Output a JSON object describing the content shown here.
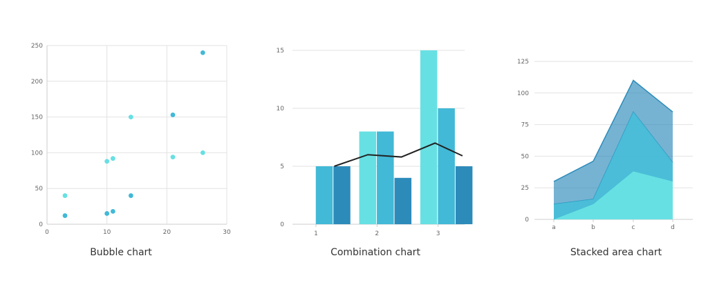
{
  "colors": {
    "light": "#67e0e3",
    "mid": "#42b9d6",
    "dark": "#2d8bba",
    "line": "#222222",
    "grid": "#e2e2e2"
  },
  "chart_data": [
    {
      "type": "scatter",
      "caption": "Bubble chart",
      "xlim": [
        0,
        30
      ],
      "ylim": [
        0,
        250
      ],
      "xticks": [
        "0",
        "10",
        "20",
        "30"
      ],
      "yticks": [
        "0",
        "50",
        "100",
        "150",
        "200",
        "250"
      ],
      "series": [
        {
          "color": "#67e0e3",
          "points": [
            [
              3,
              40
            ],
            [
              10,
              88
            ],
            [
              11,
              92
            ],
            [
              14,
              150
            ],
            [
              21,
              94
            ],
            [
              26,
              100
            ]
          ]
        },
        {
          "color": "#42b9d6",
          "points": [
            [
              3,
              12
            ],
            [
              10,
              15
            ],
            [
              11,
              18
            ],
            [
              14,
              40
            ],
            [
              21,
              153
            ],
            [
              26,
              240
            ]
          ]
        }
      ]
    },
    {
      "type": "bar",
      "caption": "Combination chart",
      "categories": [
        "1",
        "2",
        "3"
      ],
      "ylim": [
        0,
        15
      ],
      "yticks": [
        "0",
        "5",
        "10",
        "15"
      ],
      "series": [
        {
          "color": "#67e0e3",
          "values": [
            0,
            8,
            15
          ]
        },
        {
          "color": "#42b9d6",
          "values": [
            5,
            8,
            10
          ]
        },
        {
          "color": "#2d8bba",
          "values": [
            5,
            4,
            5
          ]
        }
      ],
      "line": {
        "color": "#222222",
        "x": [
          1.3,
          1.85,
          2.4,
          2.95,
          3.4
        ],
        "y": [
          5,
          6,
          5.8,
          7,
          5.9
        ]
      }
    },
    {
      "type": "area",
      "caption": "Stacked area chart",
      "categories": [
        "a",
        "b",
        "c",
        "d"
      ],
      "ylim": [
        0,
        125
      ],
      "yticks": [
        "0",
        "25",
        "50",
        "75",
        "100",
        "125"
      ],
      "series": [
        {
          "color": "#67e0e3",
          "values": [
            0,
            12,
            38,
            30
          ]
        },
        {
          "color": "#42b9d6",
          "values": [
            12,
            4,
            47,
            15
          ]
        },
        {
          "color": "#2d8bba",
          "values": [
            18,
            30,
            25,
            40
          ]
        }
      ]
    }
  ]
}
